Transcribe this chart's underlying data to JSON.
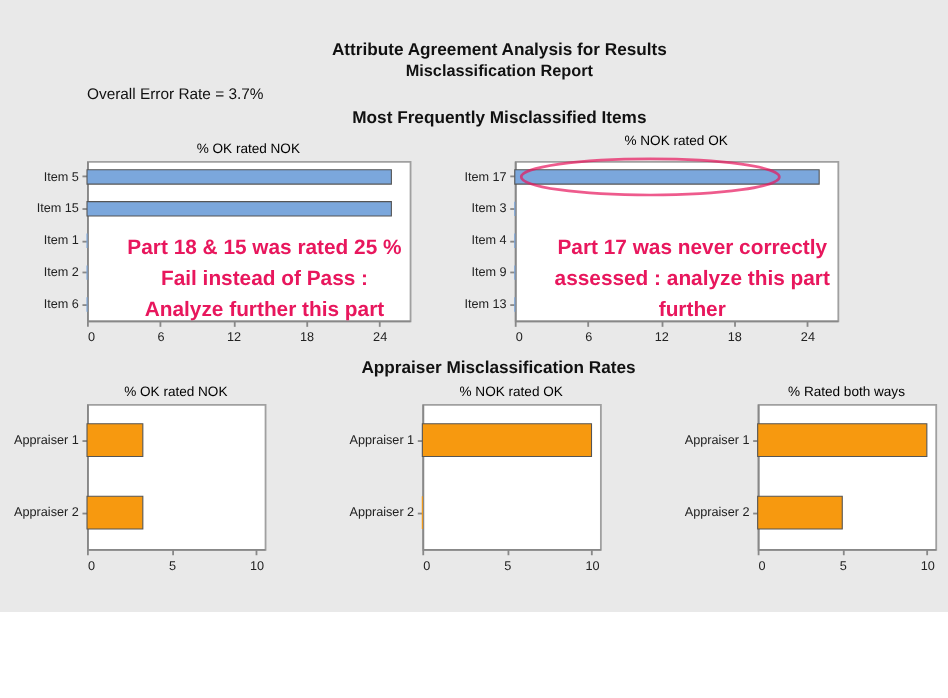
{
  "chart_data": [
    {
      "type": "bar",
      "orientation": "horizontal",
      "title": "% OK rated NOK",
      "categories": [
        "Item 5",
        "Item 15",
        "Item 1",
        "Item 2",
        "Item 6"
      ],
      "values": [
        25,
        25,
        0,
        0,
        0
      ],
      "color": "#7ba7dc",
      "xlim": [
        0,
        26.5
      ],
      "xticks": [
        0,
        6,
        12,
        18,
        24
      ],
      "annotations": [
        "Attribute Agreement Analysis for Results",
        "Misclassification Report",
        "Overall Error Rate = 3.7%",
        "Most Frequently Misclassified Items",
        "Part 18 & 15 was rated 25 %\nFail instead of Pass :\nAnalyze further this part"
      ]
    },
    {
      "type": "bar",
      "orientation": "horizontal",
      "title": "% NOK rated OK",
      "categories": [
        "Item 17",
        "Item 3",
        "Item 4",
        "Item 9",
        "Item 13"
      ],
      "values": [
        25,
        0,
        0,
        0,
        0
      ],
      "color": "#7ba7dc",
      "xlim": [
        0,
        26.5
      ],
      "xticks": [
        0,
        6,
        12,
        18,
        24
      ],
      "annotations": [
        "Part 17 was never correctly\nassessed : analyze this part\nfurther"
      ]
    },
    {
      "type": "bar",
      "orientation": "horizontal",
      "title": "% OK rated NOK",
      "categories": [
        "Appraiser 1",
        "Appraiser 2"
      ],
      "values": [
        3.3,
        3.3
      ],
      "color": "#f7990f",
      "xlim": [
        0,
        10.5
      ],
      "xticks": [
        0,
        5,
        10
      ],
      "annotations": [
        "Appraiser Misclassification Rates"
      ]
    },
    {
      "type": "bar",
      "orientation": "horizontal",
      "title": "% NOK rated OK",
      "categories": [
        "Appraiser 1",
        "Appraiser 2"
      ],
      "values": [
        10,
        0
      ],
      "color": "#f7990f",
      "xlim": [
        0,
        10.5
      ],
      "xticks": [
        0,
        5,
        10
      ]
    },
    {
      "type": "bar",
      "orientation": "horizontal",
      "title": "% Rated both ways",
      "categories": [
        "Appraiser 1",
        "Appraiser 2"
      ],
      "values": [
        10,
        5
      ],
      "color": "#f7990f",
      "xlim": [
        0,
        10.5
      ],
      "xticks": [
        0,
        5,
        10
      ]
    }
  ]
}
